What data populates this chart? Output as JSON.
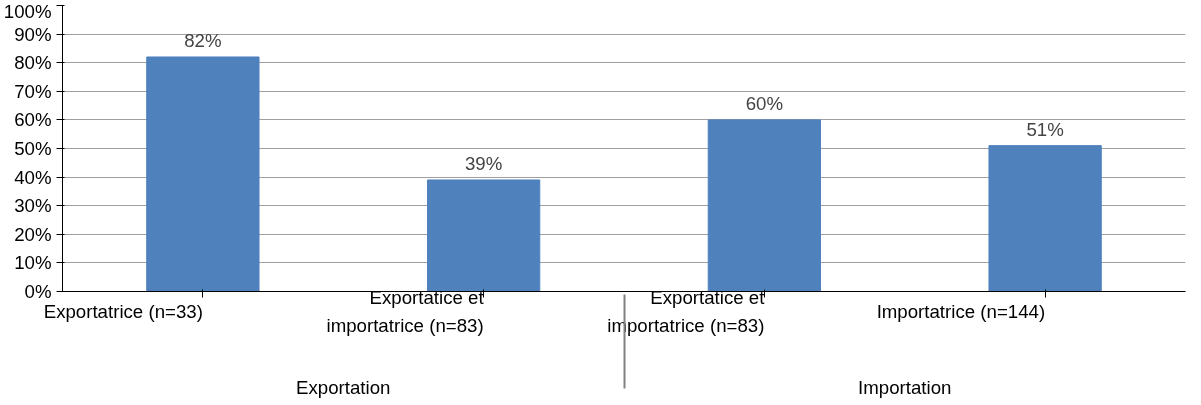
{
  "chart_data": {
    "type": "bar",
    "categories": [
      "Exportatrice (n=33)",
      "Exportatice et importatrice (n=83)",
      "Exportatice et importatrice (n=83)",
      "Importatrice (n=144)"
    ],
    "values": [
      82,
      39,
      60,
      51
    ],
    "color": "#4f81bd",
    "value_labels": [
      "82%",
      "39%",
      "60%",
      "51%"
    ],
    "annotations": [
      "Exportation",
      "Importation"
    ],
    "ylim": [
      0,
      100
    ],
    "yticks": [
      {
        "value": 0,
        "label": "0%"
      },
      {
        "value": 10,
        "label": "10%"
      },
      {
        "value": 20,
        "label": "20%"
      },
      {
        "value": 30,
        "label": "30%"
      },
      {
        "value": 40,
        "label": "40%"
      },
      {
        "value": 50,
        "label": "50%"
      },
      {
        "value": 60,
        "label": "60%"
      },
      {
        "value": 70,
        "label": "70%"
      },
      {
        "value": 80,
        "label": "80%"
      },
      {
        "value": 90,
        "label": "90%"
      },
      {
        "value": 100,
        "label": "100%"
      }
    ],
    "grid": "y"
  }
}
